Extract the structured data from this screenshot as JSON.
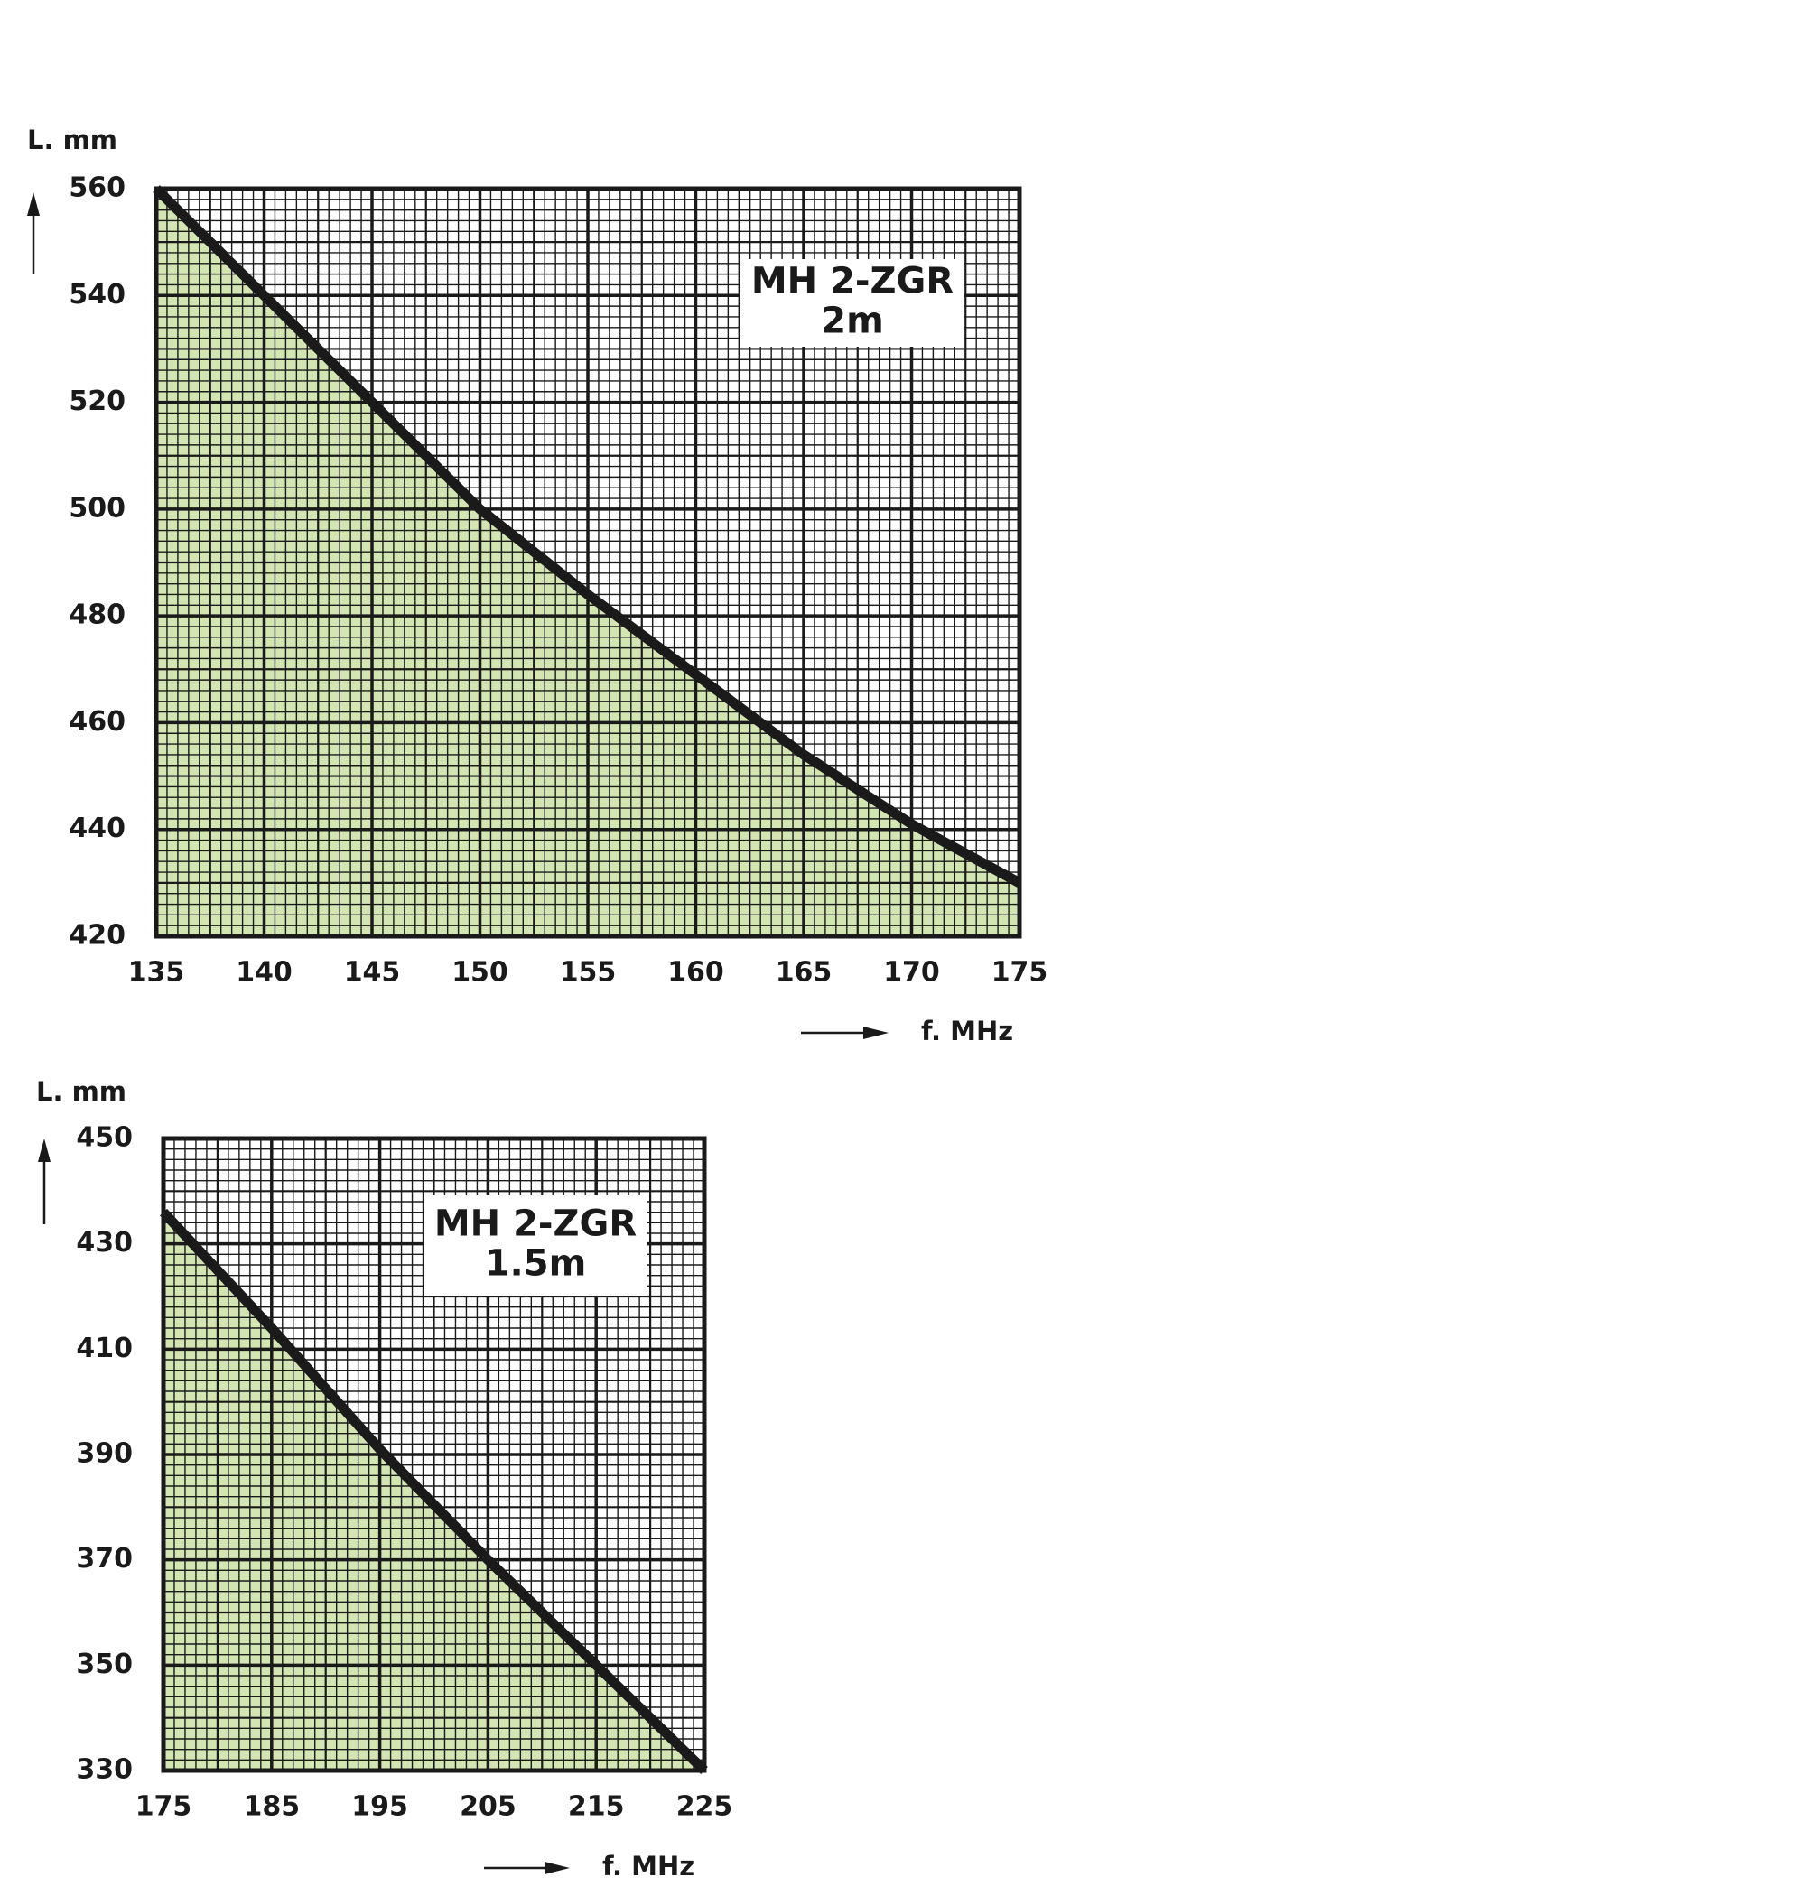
{
  "chart_data": [
    {
      "type": "line",
      "ylabel": "L. mm",
      "xlabel": "f. MHz",
      "annotation": [
        "MH 2-ZGR",
        "2m"
      ],
      "x": [
        135,
        140,
        145,
        150,
        155,
        160,
        165,
        170,
        175
      ],
      "values": [
        560,
        540,
        520,
        500,
        484,
        469,
        454,
        441,
        430
      ],
      "color": "#1a1a1a",
      "fill": "#d3e5b3",
      "xlim": [
        135,
        175
      ],
      "ylim": [
        420,
        560
      ],
      "xticks": [
        135,
        140,
        145,
        150,
        155,
        160,
        165,
        170,
        175
      ],
      "yticks": [
        420,
        440,
        460,
        480,
        500,
        520,
        540,
        560
      ],
      "grid": true
    },
    {
      "type": "line",
      "ylabel": "L. mm",
      "xlabel": "f. MHz",
      "annotation": [
        "MH 2-ZGR",
        "1.5m"
      ],
      "x": [
        175,
        185,
        195,
        205,
        215,
        225
      ],
      "values": [
        436,
        414,
        391,
        370,
        350,
        330
      ],
      "color": "#1a1a1a",
      "fill": "#d3e5b3",
      "xlim": [
        175,
        225
      ],
      "ylim": [
        330,
        450
      ],
      "xticks": [
        175,
        185,
        195,
        205,
        215,
        225
      ],
      "yticks": [
        330,
        350,
        370,
        390,
        410,
        430,
        450
      ],
      "grid": true
    }
  ]
}
